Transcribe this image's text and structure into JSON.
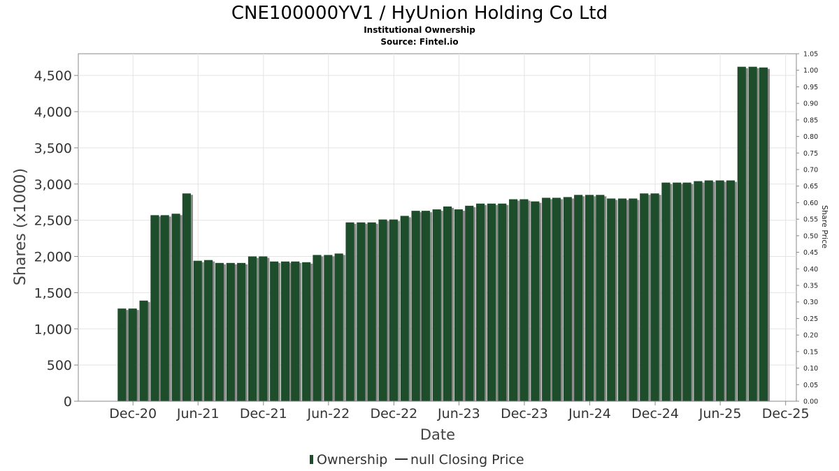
{
  "chart_data": {
    "type": "bar",
    "title": "CNE100000YV1 / HyUnion Holding Co Ltd",
    "subtitle_lines": [
      "Institutional Ownership",
      "Source: Fintel.io"
    ],
    "xlabel": "Date",
    "ylabel": "Shares (x1000)",
    "ylabel_right": "Share Price",
    "ylim": [
      0,
      4800
    ],
    "ylim_right": [
      0,
      1.05
    ],
    "yticks": [
      "0",
      "500",
      "1,000",
      "1,500",
      "2,000",
      "2,500",
      "3,000",
      "3,500",
      "4,000",
      "4,500"
    ],
    "ytick_values": [
      0,
      500,
      1000,
      1500,
      2000,
      2500,
      3000,
      3500,
      4000,
      4500
    ],
    "yticks_right": [
      "0.00",
      "0.05",
      "0.10",
      "0.15",
      "0.20",
      "0.25",
      "0.30",
      "0.35",
      "0.40",
      "0.45",
      "0.50",
      "0.55",
      "0.60",
      "0.65",
      "0.70",
      "0.75",
      "0.80",
      "0.85",
      "0.90",
      "0.95",
      "1.00",
      "1.05"
    ],
    "ytick_right_values": [
      0,
      0.05,
      0.1,
      0.15,
      0.2,
      0.25,
      0.3,
      0.35,
      0.4,
      0.45,
      0.5,
      0.55,
      0.6,
      0.65,
      0.7,
      0.75,
      0.8,
      0.85,
      0.9,
      0.95,
      1.0,
      1.05
    ],
    "xticks": [
      "Dec-20",
      "Jun-21",
      "Dec-21",
      "Jun-22",
      "Dec-22",
      "Jun-23",
      "Dec-23",
      "Jun-24",
      "Dec-24",
      "Jun-25",
      "Dec-25"
    ],
    "xtick_dates": [
      "2020-12-01",
      "2021-06-01",
      "2021-12-01",
      "2022-06-01",
      "2022-12-01",
      "2023-06-01",
      "2023-12-01",
      "2024-06-01",
      "2024-12-01",
      "2025-06-01",
      "2025-12-01"
    ],
    "xlim": [
      "2020-07-01",
      "2025-12-31"
    ],
    "grid": true,
    "legend_position": "bottom",
    "legend": [
      "Ownership",
      "null Closing Price"
    ],
    "series": [
      {
        "name": "Ownership",
        "color": "#1e4d2b",
        "shadow_color": "#8a8a8a",
        "points": [
          [
            "2020-10-31",
            1280
          ],
          [
            "2020-11-30",
            1280
          ],
          [
            "2020-12-31",
            1390
          ],
          [
            "2021-01-31",
            2570
          ],
          [
            "2021-02-28",
            2570
          ],
          [
            "2021-03-31",
            2590
          ],
          [
            "2021-04-30",
            2870
          ],
          [
            "2021-05-31",
            1940
          ],
          [
            "2021-06-30",
            1950
          ],
          [
            "2021-07-31",
            1910
          ],
          [
            "2021-08-31",
            1910
          ],
          [
            "2021-09-30",
            1910
          ],
          [
            "2021-10-31",
            2000
          ],
          [
            "2021-11-30",
            2000
          ],
          [
            "2021-12-31",
            1930
          ],
          [
            "2022-01-31",
            1930
          ],
          [
            "2022-02-28",
            1930
          ],
          [
            "2022-03-31",
            1920
          ],
          [
            "2022-04-30",
            2020
          ],
          [
            "2022-05-31",
            2020
          ],
          [
            "2022-06-30",
            2040
          ],
          [
            "2022-07-31",
            2470
          ],
          [
            "2022-08-31",
            2470
          ],
          [
            "2022-09-30",
            2470
          ],
          [
            "2022-10-31",
            2510
          ],
          [
            "2022-11-30",
            2510
          ],
          [
            "2022-12-31",
            2560
          ],
          [
            "2023-01-31",
            2630
          ],
          [
            "2023-02-28",
            2630
          ],
          [
            "2023-03-31",
            2650
          ],
          [
            "2023-04-30",
            2690
          ],
          [
            "2023-05-31",
            2650
          ],
          [
            "2023-06-30",
            2700
          ],
          [
            "2023-07-31",
            2730
          ],
          [
            "2023-08-31",
            2730
          ],
          [
            "2023-09-30",
            2730
          ],
          [
            "2023-10-31",
            2790
          ],
          [
            "2023-11-30",
            2790
          ],
          [
            "2023-12-31",
            2760
          ],
          [
            "2024-01-31",
            2810
          ],
          [
            "2024-02-29",
            2810
          ],
          [
            "2024-03-31",
            2820
          ],
          [
            "2024-04-30",
            2850
          ],
          [
            "2024-05-31",
            2850
          ],
          [
            "2024-06-30",
            2850
          ],
          [
            "2024-07-31",
            2800
          ],
          [
            "2024-08-31",
            2800
          ],
          [
            "2024-09-30",
            2800
          ],
          [
            "2024-10-31",
            2870
          ],
          [
            "2024-11-30",
            2870
          ],
          [
            "2024-12-31",
            3020
          ],
          [
            "2025-01-31",
            3020
          ],
          [
            "2025-02-28",
            3020
          ],
          [
            "2025-03-31",
            3040
          ],
          [
            "2025-04-30",
            3050
          ],
          [
            "2025-05-31",
            3050
          ],
          [
            "2025-06-30",
            3050
          ],
          [
            "2025-07-31",
            4620
          ],
          [
            "2025-08-31",
            4620
          ],
          [
            "2025-09-30",
            4610
          ]
        ]
      }
    ]
  }
}
